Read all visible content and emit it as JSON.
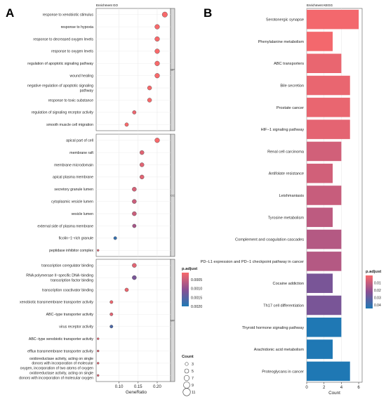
{
  "figure": {
    "panels": [
      {
        "letter": "A",
        "subtitle": "Enrichment GO"
      },
      {
        "letter": "B",
        "subtitle": "Enrichment KEGG"
      }
    ]
  },
  "chart_data": [
    {
      "type": "scatter",
      "title": "",
      "subtitle": "Enrichment GO",
      "xlabel": "GeneRatio",
      "ylabel": "",
      "xlim": [
        0.04,
        0.235
      ],
      "xticks": [
        "0.10",
        "0.15",
        "0.20"
      ],
      "xtick_values": [
        0.1,
        0.15,
        0.2
      ],
      "grid": true,
      "facets": [
        {
          "strip": "BP",
          "terms": [
            {
              "label": "response to xenobiotic stimulus",
              "x": 0.22,
              "count": 7,
              "p_adjust": 0.0001
            },
            {
              "label": "response to hypoxia",
              "x": 0.2,
              "count": 6,
              "p_adjust": 0.0001
            },
            {
              "label": "response to decreased oxygen levels",
              "x": 0.2,
              "count": 6,
              "p_adjust": 0.0001
            },
            {
              "label": "response to oxygen levels",
              "x": 0.2,
              "count": 6,
              "p_adjust": 0.0001
            },
            {
              "label": "regulation of apoptotic signaling pathway",
              "x": 0.2,
              "count": 6,
              "p_adjust": 0.0001
            },
            {
              "label": "wound healing",
              "x": 0.2,
              "count": 6,
              "p_adjust": 0.0001
            },
            {
              "label": "negative regulation of apoptotic signaling\npathway",
              "x": 0.18,
              "count": 5,
              "p_adjust": 0.0001
            },
            {
              "label": "response to toxic substance",
              "x": 0.18,
              "count": 5,
              "p_adjust": 0.0001
            },
            {
              "label": "regulation of signaling receptor activity",
              "x": 0.14,
              "count": 4,
              "p_adjust": 0.0002
            },
            {
              "label": "smooth muscle cell migration",
              "x": 0.12,
              "count": 4,
              "p_adjust": 0.0001
            }
          ]
        },
        {
          "strip": "CC",
          "terms": [
            {
              "label": "apical part of cell",
              "x": 0.2,
              "count": 6,
              "p_adjust": 0.0001
            },
            {
              "label": "membrane raft",
              "x": 0.16,
              "count": 5,
              "p_adjust": 0.0003
            },
            {
              "label": "membrane microdomain",
              "x": 0.16,
              "count": 5,
              "p_adjust": 0.0003
            },
            {
              "label": "apical plasma membrane",
              "x": 0.16,
              "count": 5,
              "p_adjust": 0.0003
            },
            {
              "label": "secretory granule lumen",
              "x": 0.14,
              "count": 5,
              "p_adjust": 0.0004
            },
            {
              "label": "cytoplasmic vesicle lumen",
              "x": 0.14,
              "count": 5,
              "p_adjust": 0.0005
            },
            {
              "label": "vesicle lumen",
              "x": 0.14,
              "count": 5,
              "p_adjust": 0.0005
            },
            {
              "label": "external side of plasma membrane",
              "x": 0.14,
              "count": 4,
              "p_adjust": 0.0008
            },
            {
              "label": "ficolin−1−rich granule",
              "x": 0.09,
              "count": 3,
              "p_adjust": 0.0018
            },
            {
              "label": "peptidase inhibitor complex",
              "x": 0.045,
              "count": 1,
              "p_adjust": 0.0003
            }
          ]
        },
        {
          "strip": "MF",
          "terms": [
            {
              "label": "transcription coregulator binding",
              "x": 0.14,
              "count": 5,
              "p_adjust": 0.0003
            },
            {
              "label": "RNA polymerase II−specific DNA−binding\ntranscription factor binding",
              "x": 0.14,
              "count": 5,
              "p_adjust": 0.0012
            },
            {
              "label": "transcription coactivator binding",
              "x": 0.12,
              "count": 4,
              "p_adjust": 0.0002
            },
            {
              "label": "xenobiotic transmembrane transporter activity",
              "x": 0.08,
              "count": 3,
              "p_adjust": 0.0002
            },
            {
              "label": "ABC−type transporter activity",
              "x": 0.08,
              "count": 3,
              "p_adjust": 0.0003
            },
            {
              "label": "virus receptor activity",
              "x": 0.08,
              "count": 3,
              "p_adjust": 0.0016
            },
            {
              "label": "ABC−type xenobiotic transporter activity",
              "x": 0.045,
              "count": 1,
              "p_adjust": 0.0003
            },
            {
              "label": "efflux transmembrane transporter activity",
              "x": 0.045,
              "count": 1,
              "p_adjust": 0.0003
            },
            {
              "label": "oxidoreductase activity, acting on single\ndonors with incorporation of molecular\noxygen, incorporation of two atoms of oxygen",
              "x": 0.045,
              "count": 1,
              "p_adjust": 0.0003
            },
            {
              "label": "oxidoreductase activity, acting on single\ndonors with incorporation of molecular oxygen",
              "x": 0.045,
              "count": 1,
              "p_adjust": 0.0003
            }
          ]
        }
      ],
      "color_legend": {
        "title": "p.adjust",
        "min": 0.0001,
        "max": 0.002,
        "ticks": [
          0.0005,
          0.001,
          0.0015,
          0.002
        ],
        "tick_labels": [
          "0.0005",
          "0.0010",
          "0.0015",
          "0.0020"
        ],
        "low_color": "#f8696b",
        "high_color": "#1f78b4"
      },
      "size_legend": {
        "title": "Count",
        "values": [
          3,
          5,
          7,
          9,
          11
        ]
      }
    },
    {
      "type": "bar",
      "title": "",
      "subtitle": "Enrichment KEGG",
      "orientation": "horizontal",
      "xlabel": "Count",
      "ylabel": "",
      "xlim": [
        0,
        6.4
      ],
      "xticks": [
        0,
        2,
        4,
        6
      ],
      "grid": true,
      "categories": [
        "Serotonergic synapse",
        "Phenylalanine metabolism",
        "ABC transporters",
        "Bile secretion",
        "Prostate cancer",
        "HIF−1 signaling pathway",
        "Renal cell carcinoma",
        "Antifolate resistance",
        "Leishmaniasis",
        "Tyrosine metabolism",
        "Complement and coagulation cascades",
        "PD−L1 expression and PD−1 checkpoint pathway in cancer",
        "Cocaine addiction",
        "Th17 cell differentiation",
        "Thyroid hormone signaling pathway",
        "Arachidonic acid metabolism",
        "Proteoglycans in cancer"
      ],
      "values": [
        6,
        3,
        4,
        5,
        5,
        5,
        4,
        3,
        4,
        3,
        4,
        4,
        3,
        4,
        4,
        3,
        5
      ],
      "p_adjust": [
        0.001,
        0.001,
        0.003,
        0.003,
        0.003,
        0.004,
        0.008,
        0.008,
        0.01,
        0.012,
        0.014,
        0.014,
        0.026,
        0.026,
        0.045,
        0.045,
        0.045
      ],
      "color_legend": {
        "title": "p.adjust",
        "min": 0.0,
        "max": 0.045,
        "ticks": [
          0.01,
          0.02,
          0.03,
          0.04
        ],
        "tick_labels": [
          "0.01",
          "0.02",
          "0.03",
          "0.04"
        ],
        "low_color": "#f8696b",
        "high_color": "#1f78b4"
      }
    }
  ]
}
